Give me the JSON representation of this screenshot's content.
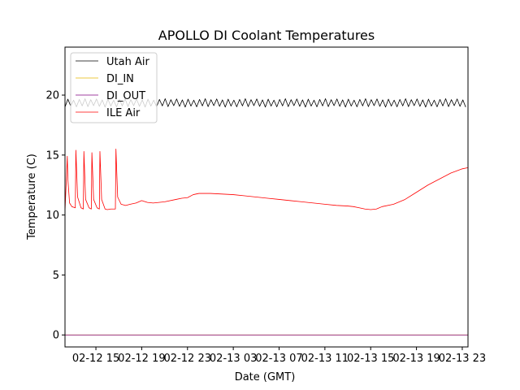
{
  "chart_data": {
    "type": "line",
    "title": "APOLLO DI Coolant Temperatures",
    "xlabel": "Date (GMT)",
    "ylabel": "Temperature (C)",
    "xlim": [
      12.3,
      47.5
    ],
    "ylim": [
      -1.0,
      24.0
    ],
    "x_unit": "hours since 2024-02-12 00:00 GMT (dates shown as MM-DD HH)",
    "x_ticks": [
      {
        "value": 15,
        "label": "02-12 15"
      },
      {
        "value": 19,
        "label": "02-12 19"
      },
      {
        "value": 23,
        "label": "02-12 23"
      },
      {
        "value": 27,
        "label": "02-13 03"
      },
      {
        "value": 31,
        "label": "02-13 07"
      },
      {
        "value": 35,
        "label": "02-13 11"
      },
      {
        "value": 39,
        "label": "02-13 15"
      },
      {
        "value": 43,
        "label": "02-13 19"
      },
      {
        "value": 47,
        "label": "02-13 23"
      }
    ],
    "y_ticks": [
      {
        "value": 0,
        "label": "0"
      },
      {
        "value": 5,
        "label": "5"
      },
      {
        "value": 10,
        "label": "10"
      },
      {
        "value": 15,
        "label": "15"
      },
      {
        "value": 20,
        "label": "20"
      }
    ],
    "legend_position": "top-left",
    "series": [
      {
        "name": "Utah Air",
        "color": "#000000",
        "style": "oscillating",
        "x_range": [
          12.3,
          47.5
        ],
        "period_hours": 0.5,
        "low": 19.0,
        "high": 19.7,
        "values_x": [
          12.3,
          47.5
        ],
        "values_y": [
          19.35,
          19.35
        ]
      },
      {
        "name": "DI_IN",
        "color": "#e6b800",
        "values_x": [
          12.3,
          47.5
        ],
        "values_y": [
          0,
          0
        ]
      },
      {
        "name": "DI_OUT",
        "color": "#800080",
        "values_x": [
          12.3,
          47.5
        ],
        "values_y": [
          0,
          0
        ]
      },
      {
        "name": "ILE Air",
        "color": "#ff0000",
        "values_x": [
          12.3,
          12.5,
          12.55,
          12.7,
          12.9,
          13.2,
          13.25,
          13.4,
          13.7,
          13.9,
          13.95,
          14.1,
          14.4,
          14.6,
          14.65,
          14.8,
          15.1,
          15.3,
          15.35,
          15.5,
          15.8,
          16.0,
          16.3,
          16.7,
          16.75,
          16.9,
          17.2,
          17.6,
          18.0,
          18.5,
          19.0,
          19.5,
          20.0,
          21.0,
          22.0,
          22.5,
          23.0,
          23.5,
          24.0,
          25.0,
          26.0,
          27.0,
          28.0,
          29.0,
          30.0,
          31.0,
          32.0,
          33.0,
          34.0,
          35.0,
          36.0,
          37.0,
          37.5,
          38.0,
          38.5,
          39.0,
          39.5,
          40.0,
          41.0,
          42.0,
          43.0,
          44.0,
          45.0,
          46.0,
          47.0,
          47.5
        ],
        "values_y": [
          10.3,
          14.9,
          13.0,
          11.0,
          10.7,
          10.6,
          15.4,
          11.5,
          10.6,
          10.5,
          15.3,
          11.3,
          10.6,
          10.5,
          15.2,
          11.3,
          10.6,
          10.5,
          15.3,
          11.3,
          10.5,
          10.45,
          10.5,
          10.5,
          15.5,
          11.5,
          10.9,
          10.8,
          10.9,
          11.0,
          11.2,
          11.05,
          11.0,
          11.1,
          11.3,
          11.4,
          11.45,
          11.7,
          11.8,
          11.8,
          11.75,
          11.7,
          11.6,
          11.5,
          11.4,
          11.3,
          11.2,
          11.1,
          11.0,
          10.9,
          10.8,
          10.75,
          10.7,
          10.6,
          10.5,
          10.45,
          10.5,
          10.7,
          10.9,
          11.3,
          11.9,
          12.5,
          13.0,
          13.5,
          13.85,
          13.95
        ]
      }
    ]
  }
}
